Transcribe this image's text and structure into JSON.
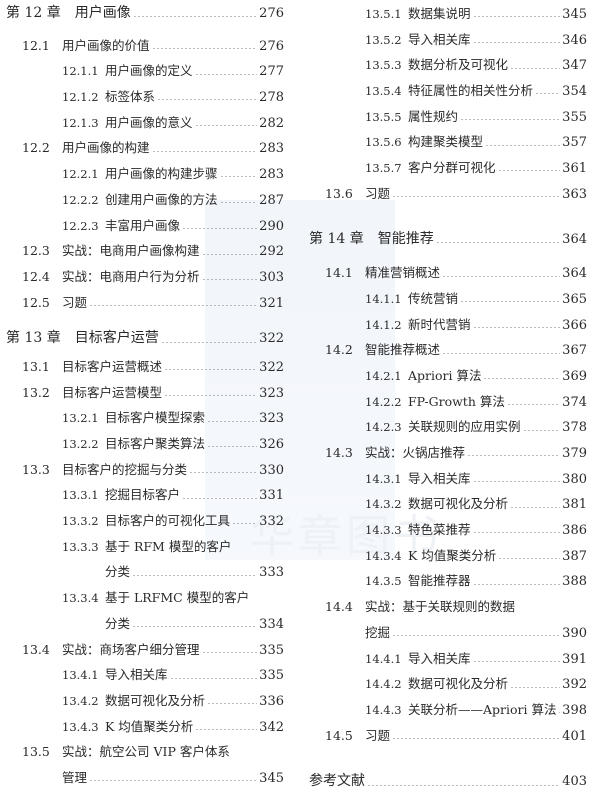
{
  "watermark": "华章图书",
  "columns": [
    [
      {
        "kind": "chapter",
        "num": "第 12 章",
        "title": "用户画像",
        "page": "276",
        "gap": 0
      },
      {
        "kind": "section",
        "num": "12.1",
        "title": "用户画像的价值",
        "page": "276",
        "gap": 6
      },
      {
        "kind": "sub",
        "num": "12.1.1",
        "title": "用户画像的定义",
        "page": "277"
      },
      {
        "kind": "sub",
        "num": "12.1.2",
        "title": "标签体系",
        "page": "278"
      },
      {
        "kind": "sub",
        "num": "12.1.3",
        "title": "用户画像的意义",
        "page": "282"
      },
      {
        "kind": "section",
        "num": "12.2",
        "title": "用户画像的构建",
        "page": "283"
      },
      {
        "kind": "sub",
        "num": "12.2.1",
        "title": "用户画像的构建步骤",
        "page": "283"
      },
      {
        "kind": "sub",
        "num": "12.2.2",
        "title": "创建用户画像的方法",
        "page": "287"
      },
      {
        "kind": "sub",
        "num": "12.2.3",
        "title": "丰富用户画像",
        "page": "290"
      },
      {
        "kind": "section",
        "num": "12.3",
        "title": "实战：电商用户画像构建",
        "page": "292"
      },
      {
        "kind": "section",
        "num": "12.4",
        "title": "实战：电商用户行为分析",
        "page": "303"
      },
      {
        "kind": "section",
        "num": "12.5",
        "title": "习题",
        "page": "321"
      },
      {
        "kind": "chapter",
        "num": "第 13 章",
        "title": "目标客户运营",
        "page": "322",
        "gap": 11
      },
      {
        "kind": "section",
        "num": "13.1",
        "title": "目标客户运营概述",
        "page": "322",
        "gap": 2
      },
      {
        "kind": "section",
        "num": "13.2",
        "title": "目标客户运营模型",
        "page": "323"
      },
      {
        "kind": "sub",
        "num": "13.2.1",
        "title": "目标客户模型探索",
        "page": "323"
      },
      {
        "kind": "sub",
        "num": "13.2.2",
        "title": "目标客户聚类算法",
        "page": "326"
      },
      {
        "kind": "section",
        "num": "13.3",
        "title": "目标客户的挖掘与分类",
        "page": "330"
      },
      {
        "kind": "sub",
        "num": "13.3.1",
        "title": "挖掘目标客户",
        "page": "331"
      },
      {
        "kind": "sub",
        "num": "13.3.2",
        "title": "目标客户的可视化工具",
        "page": "332"
      },
      {
        "kind": "sub",
        "num": "13.3.3",
        "title": "基于 RFM 模型的客户",
        "cont": "分类",
        "page": "333"
      },
      {
        "kind": "sub",
        "num": "13.3.4",
        "title": "基于 LRFMC 模型的客户",
        "cont": "分类",
        "page": "334"
      },
      {
        "kind": "section",
        "num": "13.4",
        "title": "实战：商场客户细分管理",
        "page": "335"
      },
      {
        "kind": "sub",
        "num": "13.4.1",
        "title": "导入相关库",
        "page": "335"
      },
      {
        "kind": "sub",
        "num": "13.4.2",
        "title": "数据可视化及分析",
        "page": "336"
      },
      {
        "kind": "sub",
        "num": "13.4.3",
        "title": "K 均值聚类分析",
        "page": "342"
      },
      {
        "kind": "section",
        "num": "13.5",
        "title": "实战：航空公司 VIP 客户体系",
        "cont": "管理",
        "page": "345"
      }
    ],
    [
      {
        "kind": "sub",
        "num": "13.5.1",
        "title": "数据集说明",
        "page": "345",
        "gap": 0
      },
      {
        "kind": "sub",
        "num": "13.5.2",
        "title": "导入相关库",
        "page": "346"
      },
      {
        "kind": "sub",
        "num": "13.5.3",
        "title": "数据分析及可视化",
        "page": "347"
      },
      {
        "kind": "sub",
        "num": "13.5.4",
        "title": "特征属性的相关性分析",
        "page": "354"
      },
      {
        "kind": "sub",
        "num": "13.5.5",
        "title": "属性规约",
        "page": "355"
      },
      {
        "kind": "sub",
        "num": "13.5.6",
        "title": "构建聚类模型",
        "page": "357"
      },
      {
        "kind": "sub",
        "num": "13.5.7",
        "title": "客户分群可视化",
        "page": "361"
      },
      {
        "kind": "section",
        "num": "13.6",
        "title": "习题",
        "page": "363"
      },
      {
        "kind": "chapter",
        "num": "第 14 章",
        "title": "智能推荐",
        "page": "364",
        "gap": 20
      },
      {
        "kind": "section",
        "num": "14.1",
        "title": "精准营销概述",
        "page": "364",
        "gap": 8
      },
      {
        "kind": "sub",
        "num": "14.1.1",
        "title": "传统营销",
        "page": "365"
      },
      {
        "kind": "sub",
        "num": "14.1.2",
        "title": "新时代营销",
        "page": "366"
      },
      {
        "kind": "section",
        "num": "14.2",
        "title": "智能推荐概述",
        "page": "367"
      },
      {
        "kind": "sub",
        "num": "14.2.1",
        "title": "Apriori 算法",
        "page": "369"
      },
      {
        "kind": "sub",
        "num": "14.2.2",
        "title": "FP-Growth 算法",
        "page": "374"
      },
      {
        "kind": "sub",
        "num": "14.2.3",
        "title": "关联规则的应用实例",
        "page": "378"
      },
      {
        "kind": "section",
        "num": "14.3",
        "title": "实战：火锅店推荐",
        "page": "379"
      },
      {
        "kind": "sub",
        "num": "14.3.1",
        "title": "导入相关库",
        "page": "380"
      },
      {
        "kind": "sub",
        "num": "14.3.2",
        "title": "数据可视化及分析",
        "page": "381"
      },
      {
        "kind": "sub",
        "num": "14.3.3",
        "title": "特色菜推荐",
        "page": "386"
      },
      {
        "kind": "sub",
        "num": "14.3.4",
        "title": "K 均值聚类分析",
        "page": "387"
      },
      {
        "kind": "sub",
        "num": "14.3.5",
        "title": "智能推荐器",
        "page": "388"
      },
      {
        "kind": "section",
        "num": "14.4",
        "title": "实战：基于关联规则的数据",
        "cont": "挖掘",
        "page": "390"
      },
      {
        "kind": "sub",
        "num": "14.4.1",
        "title": "导入相关库",
        "page": "391"
      },
      {
        "kind": "sub",
        "num": "14.4.2",
        "title": "数据可视化及分析",
        "page": "392"
      },
      {
        "kind": "sub",
        "num": "14.4.3",
        "title": "关联分析——Apriori 算法",
        "page": "398"
      },
      {
        "kind": "section",
        "num": "14.5",
        "title": "习题",
        "page": "401"
      },
      {
        "kind": "ref",
        "title": "参考文献",
        "page": "403",
        "gap": 21
      }
    ]
  ]
}
